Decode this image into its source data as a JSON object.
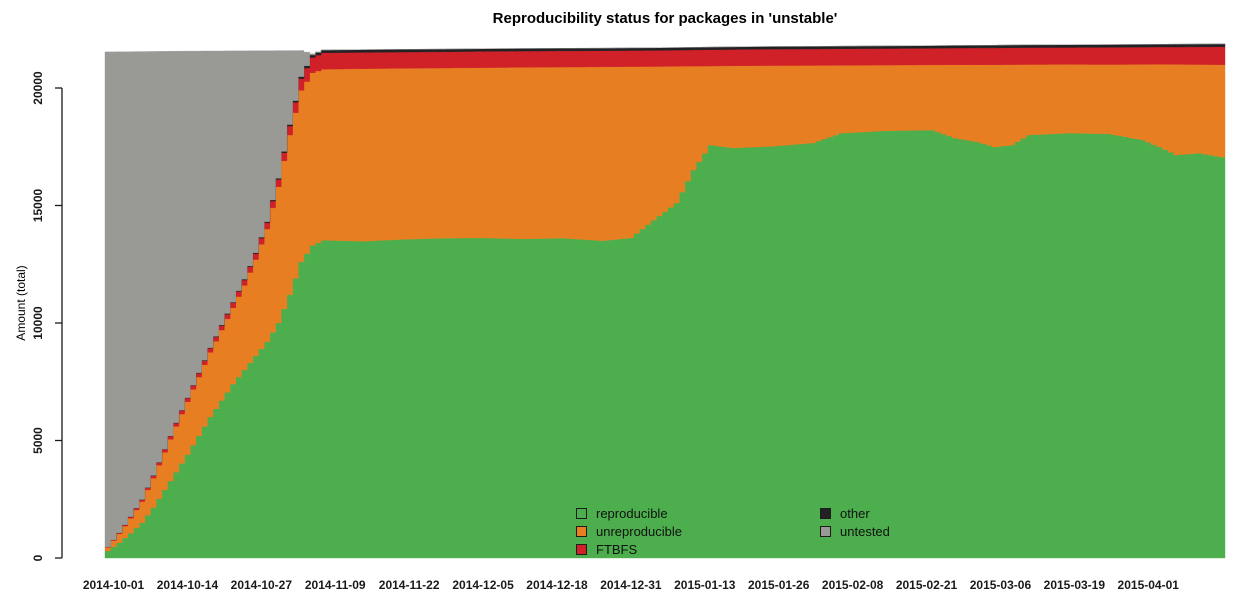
{
  "title": "Reproducibility status for packages in 'unstable'",
  "y_axis_label": "Amount (total)",
  "colors": {
    "reproducible": "#4cae4c",
    "unreproducible": "#e87e22",
    "ftbfs": "#d02028",
    "other": "#222226",
    "untested": "#999995",
    "axis": "#1a1a1a",
    "background": "#ffffff"
  },
  "legend": {
    "items": [
      {
        "key": "reproducible",
        "label": "reproducible"
      },
      {
        "key": "unreproducible",
        "label": "unreproducible"
      },
      {
        "key": "ftbfs",
        "label": "FTBFS"
      },
      {
        "key": "other",
        "label": "other"
      },
      {
        "key": "untested",
        "label": "untested"
      }
    ]
  },
  "chart_data": {
    "type": "area",
    "stacked": true,
    "title": "Reproducibility status for packages in 'unstable'",
    "xlabel": "",
    "ylabel": "Amount (total)",
    "grid": false,
    "legend_position": "inside-bottom-center",
    "x_start_date": "2014-09-30",
    "x_end_date": "2015-04-14",
    "ylim": [
      0,
      21900
    ],
    "yticks": [
      0,
      5000,
      10000,
      15000,
      20000
    ],
    "xticks": [
      "2014-10-01",
      "2014-10-14",
      "2014-10-27",
      "2014-11-09",
      "2014-11-22",
      "2014-12-05",
      "2014-12-18",
      "2014-12-31",
      "2015-01-13",
      "2015-01-26",
      "2015-02-08",
      "2015-02-21",
      "2015-03-06",
      "2015-03-19",
      "2015-04-01"
    ],
    "series_keys": [
      "reproducible",
      "unreproducible",
      "ftbfs",
      "other",
      "untested"
    ],
    "point_format": [
      "date",
      "reproducible",
      "unreproducible",
      "ftbfs",
      "other",
      "untested"
    ],
    "points": [
      [
        "2014-09-30",
        300,
        160,
        15,
        5,
        21055
      ],
      [
        "2014-10-02",
        650,
        380,
        40,
        5,
        20465
      ],
      [
        "2014-10-04",
        1050,
        640,
        60,
        10,
        19785
      ],
      [
        "2014-10-06",
        1500,
        900,
        80,
        10,
        19060
      ],
      [
        "2014-10-08",
        2150,
        1250,
        100,
        15,
        18040
      ],
      [
        "2014-10-10",
        2900,
        1600,
        120,
        15,
        16925
      ],
      [
        "2014-10-12",
        3650,
        1950,
        140,
        20,
        15805
      ],
      [
        "2014-10-14",
        4400,
        2250,
        155,
        20,
        14745
      ],
      [
        "2014-10-16",
        5200,
        2500,
        165,
        25,
        13680
      ],
      [
        "2014-10-18",
        6000,
        2750,
        175,
        25,
        12625
      ],
      [
        "2014-10-20",
        6700,
        3000,
        190,
        30,
        11655
      ],
      [
        "2014-10-22",
        7400,
        3250,
        210,
        30,
        10690
      ],
      [
        "2014-10-24",
        8000,
        3600,
        230,
        35,
        9715
      ],
      [
        "2014-10-26",
        8600,
        4100,
        250,
        40,
        8595
      ],
      [
        "2014-10-28",
        9200,
        4800,
        270,
        45,
        7270
      ],
      [
        "2014-10-30",
        10000,
        5800,
        310,
        50,
        5430
      ],
      [
        "2014-11-01",
        11200,
        6800,
        380,
        65,
        3145
      ],
      [
        "2014-11-03",
        12600,
        7300,
        500,
        85,
        1110
      ],
      [
        "2014-11-05",
        13300,
        7350,
        650,
        105,
        50
      ],
      [
        "2014-11-07",
        13520,
        7280,
        700,
        115,
        0
      ],
      [
        "2014-11-14",
        13480,
        7340,
        695,
        115,
        0
      ],
      [
        "2014-11-21",
        13560,
        7280,
        690,
        115,
        0
      ],
      [
        "2014-11-28",
        13610,
        7240,
        690,
        115,
        0
      ],
      [
        "2014-12-05",
        13620,
        7245,
        695,
        110,
        0
      ],
      [
        "2014-12-12",
        13580,
        7300,
        690,
        110,
        0
      ],
      [
        "2014-12-19",
        13610,
        7280,
        690,
        110,
        0
      ],
      [
        "2014-12-26",
        13500,
        7400,
        685,
        110,
        0
      ],
      [
        "2014-12-31",
        13620,
        7290,
        685,
        110,
        0
      ],
      [
        "2015-01-04",
        14380,
        6535,
        685,
        110,
        0
      ],
      [
        "2015-01-08",
        15100,
        5825,
        685,
        110,
        0
      ],
      [
        "2015-01-11",
        16510,
        4420,
        690,
        110,
        0
      ],
      [
        "2015-01-14",
        17570,
        3365,
        695,
        110,
        0
      ],
      [
        "2015-01-18",
        17450,
        3495,
        695,
        110,
        0
      ],
      [
        "2015-01-25",
        17520,
        3435,
        700,
        110,
        0
      ],
      [
        "2015-02-01",
        17660,
        3300,
        700,
        110,
        0
      ],
      [
        "2015-02-06",
        18080,
        2885,
        705,
        110,
        0
      ],
      [
        "2015-02-14",
        18180,
        2795,
        705,
        110,
        0
      ],
      [
        "2015-02-22",
        18210,
        2775,
        705,
        110,
        0
      ],
      [
        "2015-02-26",
        17870,
        3120,
        710,
        110,
        0
      ],
      [
        "2015-03-02",
        17700,
        3290,
        715,
        110,
        0
      ],
      [
        "2015-03-05",
        17490,
        3500,
        715,
        115,
        0
      ],
      [
        "2015-03-08",
        17570,
        3425,
        720,
        115,
        0
      ],
      [
        "2015-03-11",
        18000,
        3000,
        720,
        115,
        0
      ],
      [
        "2015-03-18",
        18080,
        2925,
        720,
        115,
        0
      ],
      [
        "2015-03-25",
        18050,
        2950,
        730,
        115,
        0
      ],
      [
        "2015-03-31",
        17790,
        3215,
        735,
        115,
        0
      ],
      [
        "2015-04-03",
        17490,
        3520,
        735,
        115,
        0
      ],
      [
        "2015-04-06",
        17150,
        3855,
        740,
        120,
        0
      ],
      [
        "2015-04-10",
        17230,
        3770,
        750,
        120,
        0
      ],
      [
        "2015-04-14",
        17060,
        3930,
        765,
        120,
        0
      ]
    ]
  }
}
